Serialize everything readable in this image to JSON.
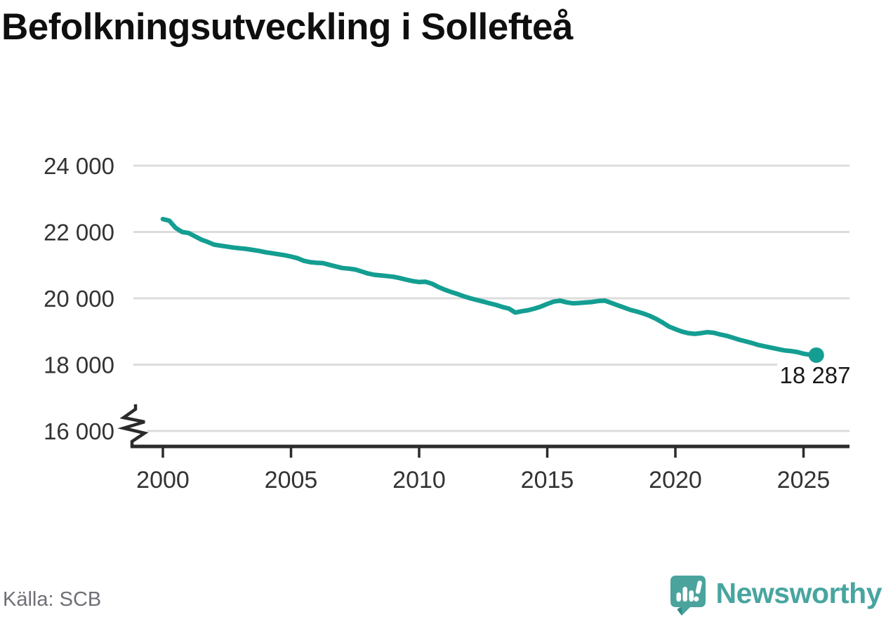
{
  "title": "Befolkningsutveckling i Sollefteå",
  "source": "Källa: SCB",
  "branding": {
    "logo_text": "Newsworthy",
    "logo_icon": "newsworthy-speech-bubble-bar-chart-icon",
    "logo_color": "#4ba39e",
    "logo_fold_color": "#2e8b85",
    "logo_text_color": "#48a5a0"
  },
  "chart_data": {
    "type": "line",
    "title": "Befolkningsutveckling i Sollefteå",
    "xlabel": "",
    "ylabel": "",
    "x_ticks": [
      2000,
      2005,
      2010,
      2015,
      2020,
      2025
    ],
    "y_ticks": [
      {
        "label": "24 000",
        "value": 24000
      },
      {
        "label": "22 000",
        "value": 22000
      },
      {
        "label": "20 000",
        "value": 20000
      },
      {
        "label": "18 000",
        "value": 18000
      },
      {
        "label": "16 000",
        "value": 16000
      }
    ],
    "y_axis_break": true,
    "xlim": [
      1998.8,
      2026.8
    ],
    "ylim": [
      15500,
      24400
    ],
    "grid": true,
    "legend": "none",
    "line_color": "#149e92",
    "grid_color": "#dcdcdc",
    "axis_color": "#2b2b2b",
    "tick_label_color": "#333333",
    "end_point_label": "18 287",
    "end_point_value": 18287,
    "end_point_x": 2025.5,
    "series": [
      {
        "name": "population",
        "points": [
          [
            2000,
            22390
          ],
          [
            2000.25,
            22340
          ],
          [
            2000.5,
            22120
          ],
          [
            2000.75,
            22000
          ],
          [
            2001,
            21970
          ],
          [
            2001.25,
            21870
          ],
          [
            2001.5,
            21770
          ],
          [
            2001.75,
            21700
          ],
          [
            2002,
            21620
          ],
          [
            2002.25,
            21590
          ],
          [
            2002.5,
            21560
          ],
          [
            2002.75,
            21530
          ],
          [
            2003,
            21510
          ],
          [
            2003.25,
            21490
          ],
          [
            2003.5,
            21460
          ],
          [
            2003.75,
            21430
          ],
          [
            2004,
            21390
          ],
          [
            2004.25,
            21360
          ],
          [
            2004.5,
            21330
          ],
          [
            2004.75,
            21300
          ],
          [
            2005,
            21260
          ],
          [
            2005.25,
            21210
          ],
          [
            2005.5,
            21130
          ],
          [
            2005.75,
            21090
          ],
          [
            2006,
            21070
          ],
          [
            2006.25,
            21060
          ],
          [
            2006.5,
            21010
          ],
          [
            2006.75,
            20960
          ],
          [
            2007,
            20915
          ],
          [
            2007.25,
            20895
          ],
          [
            2007.5,
            20870
          ],
          [
            2007.75,
            20810
          ],
          [
            2008,
            20750
          ],
          [
            2008.25,
            20710
          ],
          [
            2008.5,
            20690
          ],
          [
            2008.75,
            20670
          ],
          [
            2009,
            20650
          ],
          [
            2009.25,
            20610
          ],
          [
            2009.5,
            20560
          ],
          [
            2009.75,
            20520
          ],
          [
            2010,
            20490
          ],
          [
            2010.25,
            20500
          ],
          [
            2010.5,
            20440
          ],
          [
            2010.75,
            20340
          ],
          [
            2011,
            20260
          ],
          [
            2011.25,
            20190
          ],
          [
            2011.5,
            20130
          ],
          [
            2011.75,
            20060
          ],
          [
            2012,
            20000
          ],
          [
            2012.25,
            19950
          ],
          [
            2012.5,
            19900
          ],
          [
            2012.75,
            19850
          ],
          [
            2013,
            19800
          ],
          [
            2013.25,
            19740
          ],
          [
            2013.5,
            19690
          ],
          [
            2013.75,
            19570
          ],
          [
            2014,
            19610
          ],
          [
            2014.25,
            19640
          ],
          [
            2014.5,
            19690
          ],
          [
            2014.75,
            19750
          ],
          [
            2015,
            19830
          ],
          [
            2015.25,
            19900
          ],
          [
            2015.5,
            19930
          ],
          [
            2015.75,
            19880
          ],
          [
            2016,
            19850
          ],
          [
            2016.25,
            19860
          ],
          [
            2016.5,
            19875
          ],
          [
            2016.75,
            19890
          ],
          [
            2017,
            19920
          ],
          [
            2017.25,
            19930
          ],
          [
            2017.5,
            19860
          ],
          [
            2017.75,
            19790
          ],
          [
            2018,
            19720
          ],
          [
            2018.25,
            19650
          ],
          [
            2018.5,
            19600
          ],
          [
            2018.75,
            19540
          ],
          [
            2019,
            19470
          ],
          [
            2019.25,
            19380
          ],
          [
            2019.5,
            19270
          ],
          [
            2019.75,
            19150
          ],
          [
            2020,
            19070
          ],
          [
            2020.25,
            19000
          ],
          [
            2020.5,
            18950
          ],
          [
            2020.75,
            18930
          ],
          [
            2021,
            18950
          ],
          [
            2021.25,
            18980
          ],
          [
            2021.5,
            18960
          ],
          [
            2021.75,
            18910
          ],
          [
            2022,
            18870
          ],
          [
            2022.25,
            18810
          ],
          [
            2022.5,
            18750
          ],
          [
            2022.75,
            18700
          ],
          [
            2023,
            18650
          ],
          [
            2023.25,
            18590
          ],
          [
            2023.5,
            18550
          ],
          [
            2023.75,
            18510
          ],
          [
            2024,
            18470
          ],
          [
            2024.25,
            18430
          ],
          [
            2024.5,
            18410
          ],
          [
            2024.75,
            18380
          ],
          [
            2025,
            18330
          ],
          [
            2025.25,
            18300
          ],
          [
            2025.5,
            18287
          ]
        ]
      }
    ]
  }
}
